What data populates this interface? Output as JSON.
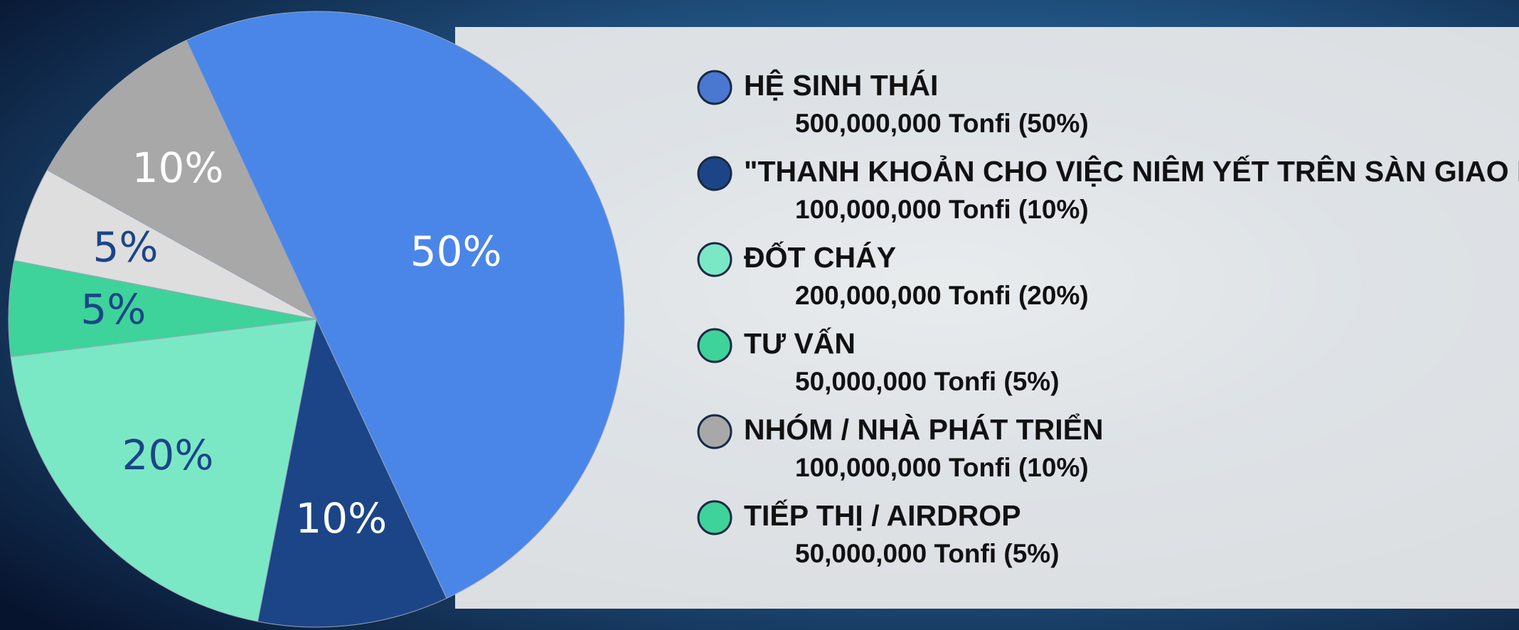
{
  "chart_data": {
    "type": "pie",
    "values": [
      50,
      10,
      20,
      5,
      5,
      10
    ],
    "value_labels": [
      "50%",
      "10%",
      "20%",
      "5%",
      "5%",
      "10%"
    ],
    "colors": [
      "#4a86e8",
      "#1c4587",
      "#7be8c5",
      "#3ed39a",
      "#dedede",
      "#a8a8a8"
    ],
    "label_colors": [
      "#ffffff",
      "#ffffff",
      "#1c4587",
      "#1c4587",
      "#1c4587",
      "#ffffff"
    ],
    "legend": [
      {
        "label": "HỆ SINH THÁI",
        "detail": "500,000,000 Tonfi (50%)",
        "color": "#4a78d0"
      },
      {
        "label": "\"THANH KHOẢN CHO VIỆC NIÊM YẾT TRÊN SÀN GIAO DỊCH\"",
        "detail": "100,000,000 Tonfi (10%)",
        "color": "#1c4587"
      },
      {
        "label": "ĐỐT CHÁY",
        "detail": "200,000,000 Tonfi (20%)",
        "color": "#7be8c5"
      },
      {
        "label": "TƯ VẤN",
        "detail": "50,000,000 Tonfi (5%)",
        "color": "#3ed39a"
      },
      {
        "label": "NHÓM / NHÀ PHÁT TRIỂN",
        "detail": "100,000,000 Tonfi (10%)",
        "color": "#a8a8a8"
      },
      {
        "label": "TIẾP THỊ / AIRDROP",
        "detail": "50,000,000 Tonfi (5%)",
        "color": "#3ed39a"
      }
    ]
  }
}
